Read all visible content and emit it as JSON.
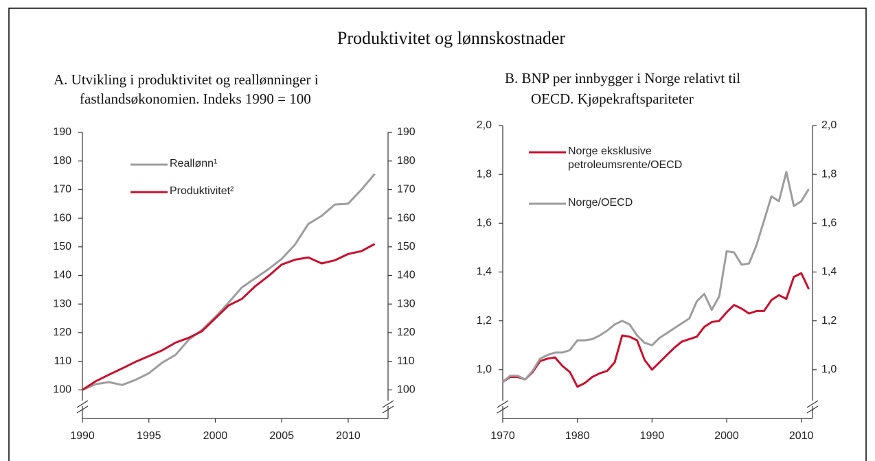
{
  "title": "Produktivitet og lønnskostnader",
  "chart_data": [
    {
      "type": "line",
      "subtitle": [
        "A.  Utvikling i produktivitet og reallønninger i",
        "fastlandsøkonomien. Indeks 1990 = 100"
      ],
      "x": [
        1990,
        1991,
        1992,
        1993,
        1994,
        1995,
        1996,
        1997,
        1998,
        1999,
        2000,
        2001,
        2002,
        2003,
        2004,
        2005,
        2006,
        2007,
        2008,
        2009,
        2010,
        2011,
        2012
      ],
      "series": [
        {
          "name": "Reallønn¹",
          "color": "#9d9d9d",
          "values": [
            100,
            102,
            102.7,
            101.7,
            103.5,
            105.8,
            109.5,
            112.2,
            117.5,
            121,
            125.5,
            130.5,
            135.8,
            139,
            142.2,
            145.8,
            150.8,
            158,
            160.8,
            164.8,
            165.1,
            170,
            175.5
          ]
        },
        {
          "name": "Produktivitet²",
          "color": "#c8102e",
          "values": [
            100,
            103,
            105.3,
            107.5,
            109.8,
            111.8,
            113.8,
            116.5,
            118.2,
            120.5,
            125,
            129.5,
            131.8,
            136.2,
            139.8,
            143.8,
            145.5,
            146.3,
            144.2,
            145.3,
            147.5,
            148.5,
            151
          ]
        }
      ],
      "xlim": [
        1990,
        2013
      ],
      "xticks": [
        1990,
        1995,
        2000,
        2005,
        2010
      ],
      "ylim": [
        90,
        190
      ],
      "yticks": [
        100,
        110,
        120,
        130,
        140,
        150,
        160,
        170,
        180,
        190
      ],
      "y2lim": [
        90,
        190
      ],
      "y2ticks": [
        100,
        110,
        120,
        130,
        140,
        150,
        160,
        170,
        180,
        190
      ]
    },
    {
      "type": "line",
      "subtitle": [
        "B.   BNP per innbygger i Norge relativt til",
        "OECD. Kjøpekraftspariteter"
      ],
      "x": [
        1970,
        1971,
        1972,
        1973,
        1974,
        1975,
        1976,
        1977,
        1978,
        1979,
        1980,
        1981,
        1982,
        1983,
        1984,
        1985,
        1986,
        1987,
        1988,
        1989,
        1990,
        1991,
        1992,
        1993,
        1994,
        1995,
        1996,
        1997,
        1998,
        1999,
        2000,
        2001,
        2002,
        2003,
        2004,
        2005,
        2006,
        2007,
        2008,
        2009,
        2010,
        2011
      ],
      "series": [
        {
          "name": "Norge eksklusive petroleumsrente/OECD",
          "color": "#c8102e",
          "values": [
            0.95,
            0.97,
            0.97,
            0.96,
            0.99,
            1.035,
            1.045,
            1.05,
            1.015,
            0.99,
            0.93,
            0.945,
            0.97,
            0.985,
            0.995,
            1.03,
            1.14,
            1.135,
            1.12,
            1.04,
            1.0,
            1.03,
            1.06,
            1.09,
            1.115,
            1.125,
            1.135,
            1.175,
            1.195,
            1.2,
            1.235,
            1.265,
            1.25,
            1.23,
            1.24,
            1.24,
            1.285,
            1.305,
            1.29,
            1.38,
            1.395,
            1.33
          ]
        },
        {
          "name": "Norge/OECD",
          "color": "#9d9d9d",
          "values": [
            0.95,
            0.975,
            0.975,
            0.96,
            0.995,
            1.045,
            1.06,
            1.07,
            1.07,
            1.08,
            1.12,
            1.12,
            1.125,
            1.14,
            1.16,
            1.185,
            1.2,
            1.185,
            1.14,
            1.11,
            1.1,
            1.13,
            1.15,
            1.17,
            1.19,
            1.21,
            1.28,
            1.31,
            1.245,
            1.3,
            1.485,
            1.48,
            1.43,
            1.435,
            1.51,
            1.61,
            1.71,
            1.69,
            1.81,
            1.67,
            1.69,
            1.74
          ]
        }
      ],
      "xlim": [
        1970,
        2011.5
      ],
      "xticks": [
        1970,
        1980,
        1990,
        2000,
        2010
      ],
      "ylim": [
        0.8,
        2.0
      ],
      "yticks": [
        {
          "value": 1.0,
          "label": "1,0"
        },
        {
          "value": 1.2,
          "label": "1,2"
        },
        {
          "value": 1.4,
          "label": "1,4"
        },
        {
          "value": 1.6,
          "label": "1,6"
        },
        {
          "value": 1.8,
          "label": "1,8"
        },
        {
          "value": 2.0,
          "label": "2,0"
        }
      ],
      "y2lim": [
        0.8,
        2.0
      ],
      "y2ticks": [
        {
          "value": 1.0,
          "label": "1,0"
        },
        {
          "value": 1.2,
          "label": "1,2"
        },
        {
          "value": 1.4,
          "label": "1,4"
        },
        {
          "value": 1.6,
          "label": "1,6"
        },
        {
          "value": 1.8,
          "label": "1,8"
        },
        {
          "value": 2.0,
          "label": "2,0"
        }
      ]
    }
  ]
}
